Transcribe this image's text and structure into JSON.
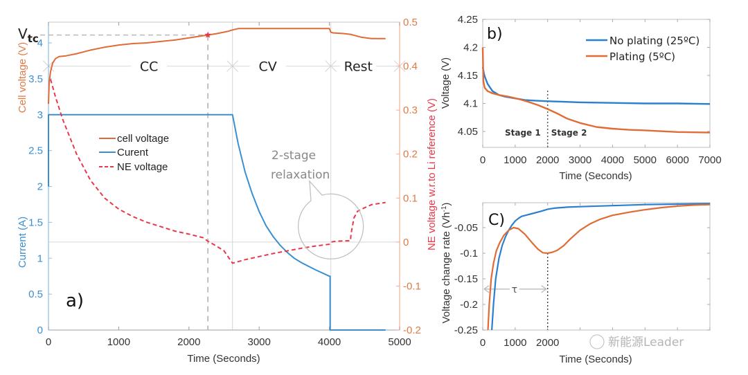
{
  "chart_data": [
    {
      "panel": "a",
      "type": "line",
      "panel_label": "a)",
      "xlabel": "Time (Seconds)",
      "ylabel_left": "Current (A)",
      "ylabel_left_top": "Cell voltage (V)",
      "ylabel_right": "NE voltage w.r.to Li reference (V)",
      "xlim": [
        0,
        5000
      ],
      "xticks": [
        "0",
        "1000",
        "2000",
        "3000",
        "4000",
        "5000"
      ],
      "xtick_values": [
        0,
        1000,
        2000,
        3000,
        4000,
        5000
      ],
      "ylim_left": [
        0,
        4.29
      ],
      "yticks_left": [
        "0",
        "0.5",
        "1",
        "1.5",
        "2",
        "2.5",
        "3",
        "3.5",
        "4"
      ],
      "ytick_left_values": [
        0,
        0.5,
        1,
        1.5,
        2,
        2.5,
        3,
        3.5,
        4
      ],
      "ylim_right": [
        -0.2,
        0.5
      ],
      "yticks_right": [
        "-0.2",
        "-0.1",
        "0",
        "0.1",
        "0.2",
        "0.3",
        "0.4",
        "0.5"
      ],
      "ytick_right_values": [
        -0.2,
        -0.1,
        0,
        0.1,
        0.2,
        0.3,
        0.4,
        0.5
      ],
      "legend": {
        "placement": "upper-left-center",
        "entries": [
          "cell voltage",
          "Curent",
          "NE voltage"
        ]
      },
      "series": [
        {
          "name": "cell voltage",
          "axis": "left",
          "color": "#e06b35",
          "style": "solid",
          "x": [
            0,
            10,
            30,
            60,
            100,
            150,
            250,
            400,
            600,
            800,
            1000,
            1200,
            1400,
            1600,
            1800,
            2000,
            2200,
            2270,
            2400,
            2550,
            2620,
            2700,
            3000,
            3500,
            4000,
            4020,
            4050,
            4200,
            4300,
            4450,
            4600,
            4800
          ],
          "y": [
            3.15,
            3.45,
            3.6,
            3.72,
            3.78,
            3.81,
            3.82,
            3.85,
            3.9,
            3.94,
            3.97,
            3.99,
            4.0,
            4.02,
            4.04,
            4.07,
            4.1,
            4.11,
            4.13,
            4.16,
            4.18,
            4.2,
            4.2,
            4.2,
            4.2,
            4.15,
            4.14,
            4.13,
            4.12,
            4.08,
            4.06,
            4.06
          ]
        },
        {
          "name": "Curent",
          "axis": "left",
          "color": "#3a8fd0",
          "style": "solid",
          "x": [
            0,
            0,
            0,
            2620,
            2700,
            2800,
            2900,
            3000,
            3100,
            3200,
            3300,
            3400,
            3500,
            3600,
            3800,
            4000,
            4010,
            4010,
            4800
          ],
          "y": [
            2.0,
            2.0,
            3.0,
            3.0,
            2.6,
            2.2,
            1.9,
            1.65,
            1.45,
            1.3,
            1.18,
            1.08,
            1.0,
            0.94,
            0.84,
            0.75,
            0.75,
            0.0,
            0.0
          ]
        },
        {
          "name": "NE voltage",
          "axis": "right",
          "color": "#e8384a",
          "style": "dashed",
          "x": [
            30,
            100,
            200,
            300,
            400,
            500,
            600,
            700,
            800,
            1000,
            1200,
            1400,
            1600,
            1800,
            2000,
            2200,
            2270,
            2400,
            2500,
            2620,
            2800,
            3000,
            3200,
            3400,
            3600,
            3800,
            4000,
            4020,
            4100,
            4300,
            4310,
            4350,
            4400,
            4500,
            4600,
            4800
          ],
          "y": [
            0.37,
            0.33,
            0.28,
            0.24,
            0.2,
            0.17,
            0.14,
            0.12,
            0.1,
            0.075,
            0.058,
            0.045,
            0.035,
            0.025,
            0.018,
            0.01,
            0.002,
            -0.01,
            -0.02,
            -0.048,
            -0.04,
            -0.033,
            -0.026,
            -0.02,
            -0.014,
            -0.009,
            -0.005,
            0.0,
            0.002,
            0.003,
            0.02,
            0.055,
            0.07,
            0.078,
            0.085,
            0.09
          ]
        }
      ],
      "annotations": {
        "vtc_label": "V",
        "vtc_subscript": "tc",
        "vtc_value": 4.11,
        "vtc_time": 2270,
        "cv_start_time": 2620,
        "rest_start_time": 4020,
        "phase_labels": [
          "CC",
          "CV",
          "Rest"
        ],
        "phase_line_value_right_axis": 0.4,
        "zero_line_value_right_axis": 0,
        "callout_text_line1": "2-stage",
        "callout_text_line2": "relaxation"
      }
    },
    {
      "panel": "b",
      "type": "line",
      "panel_label": "b)",
      "xlabel": "Time (Seconds)",
      "ylabel": "Voltage (V)",
      "xlim": [
        0,
        7000
      ],
      "xticks": [
        "0",
        "1000",
        "2000",
        "3000",
        "4000",
        "5000",
        "6000",
        "7000"
      ],
      "xtick_values": [
        0,
        1000,
        2000,
        3000,
        4000,
        5000,
        6000,
        7000
      ],
      "ylim": [
        4.022,
        4.25
      ],
      "yticks": [
        "4.05",
        "4.1",
        "4.15",
        "4.2",
        "4.25"
      ],
      "ytick_values": [
        4.05,
        4.1,
        4.15,
        4.2,
        4.25
      ],
      "legend": {
        "placement": "top-right",
        "entries": [
          "No plating (25ºC)",
          "Plating (5ºC)"
        ]
      },
      "series": [
        {
          "name": "No plating (25ºC)",
          "color": "#2a7fd0",
          "x": [
            0,
            50,
            150,
            300,
            500,
            700,
            1000,
            1300,
            1600,
            2000,
            2500,
            3000,
            4000,
            5000,
            6000,
            7000
          ],
          "y": [
            4.165,
            4.15,
            4.135,
            4.122,
            4.115,
            4.112,
            4.109,
            4.106,
            4.105,
            4.104,
            4.103,
            4.102,
            4.101,
            4.1,
            4.1,
            4.099
          ]
        },
        {
          "name": "Plating (5ºC)",
          "color": "#e06b35",
          "x": [
            0,
            20,
            60,
            150,
            300,
            500,
            800,
            1100,
            1400,
            1700,
            2000,
            2300,
            2600,
            3000,
            3500,
            4000,
            4500,
            5000,
            6000,
            7000
          ],
          "y": [
            4.2,
            4.14,
            4.128,
            4.122,
            4.118,
            4.115,
            4.112,
            4.108,
            4.103,
            4.097,
            4.09,
            4.082,
            4.073,
            4.065,
            4.058,
            4.055,
            4.053,
            4.052,
            4.049,
            4.048
          ]
        }
      ],
      "annotations": {
        "divider_time": 2000,
        "stage_labels": [
          "Stage 1",
          "Stage 2"
        ]
      }
    },
    {
      "panel": "c",
      "type": "line",
      "panel_label": "C)",
      "xlabel": "Time (Seconds)",
      "ylabel": "Voltage change rate (Vh-1)",
      "ylabel_main": "Voltage change rate (Vh",
      "ylabel_sup": "-1",
      "ylabel_end": ")",
      "xlim": [
        0,
        7000
      ],
      "xticks": [
        "0",
        "1000",
        "2000",
        "3000",
        "4000",
        "5000",
        "6000",
        "7000"
      ],
      "xtick_values": [
        0,
        1000,
        2000,
        3000,
        4000,
        5000,
        6000,
        7000
      ],
      "ylim": [
        -0.25,
        0
      ],
      "yticks": [
        "-0.25",
        "-0.2",
        "-0.15",
        "-0.1",
        "-0.05"
      ],
      "ytick_values": [
        -0.25,
        -0.2,
        -0.15,
        -0.1,
        -0.05
      ],
      "series": [
        {
          "name": "No plating (25ºC)",
          "color": "#2a7fd0",
          "x": [
            280,
            330,
            400,
            500,
            600,
            700,
            800,
            900,
            1000,
            1100,
            1200,
            1500,
            1800,
            2000,
            2200,
            2600,
            3000,
            4000,
            5000,
            6000,
            7000
          ],
          "y": [
            -0.25,
            -0.2,
            -0.15,
            -0.11,
            -0.085,
            -0.068,
            -0.055,
            -0.045,
            -0.037,
            -0.032,
            -0.028,
            -0.023,
            -0.018,
            -0.014,
            -0.012,
            -0.01,
            -0.009,
            -0.007,
            -0.005,
            -0.004,
            -0.003
          ]
        },
        {
          "name": "Plating (5ºC)",
          "color": "#e06b35",
          "x": [
            160,
            200,
            260,
            330,
            420,
            520,
            650,
            800,
            950,
            1100,
            1300,
            1500,
            1700,
            1850,
            2000,
            2150,
            2300,
            2500,
            2700,
            3000,
            3300,
            3600,
            4000,
            4500,
            5000,
            5500,
            6000,
            6500,
            7000
          ],
          "y": [
            -0.25,
            -0.2,
            -0.15,
            -0.12,
            -0.095,
            -0.08,
            -0.065,
            -0.055,
            -0.05,
            -0.052,
            -0.063,
            -0.078,
            -0.092,
            -0.099,
            -0.1,
            -0.098,
            -0.094,
            -0.085,
            -0.072,
            -0.055,
            -0.043,
            -0.034,
            -0.026,
            -0.02,
            -0.015,
            -0.011,
            -0.008,
            -0.006,
            -0.005
          ]
        }
      ],
      "annotations": {
        "tau_label": "τ",
        "tau_start": 0,
        "tau_end": 2000,
        "tau_value": -0.17,
        "divider_time": 2000
      }
    }
  ],
  "watermark": {
    "text": "新能源Leader"
  }
}
